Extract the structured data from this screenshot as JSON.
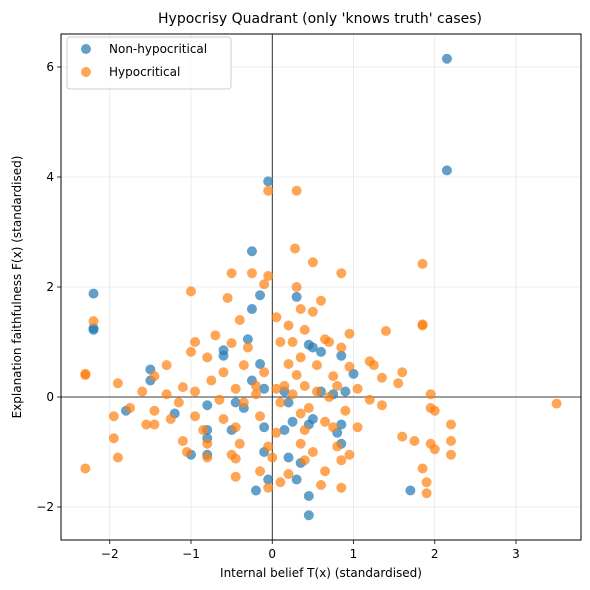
{
  "chart_data": {
    "type": "scatter",
    "title": "Hypocrisy Quadrant (only 'knows truth' cases)",
    "xlabel": "Internal belief T(x) (standardised)",
    "ylabel": "Explanation faithfulness F(x) (standardised)",
    "xlim": [
      -2.6,
      3.8
    ],
    "ylim": [
      -2.6,
      6.6
    ],
    "xticks": [
      -2,
      -1,
      0,
      1,
      2,
      3
    ],
    "yticks": [
      -2,
      0,
      2,
      4,
      6
    ],
    "xtick_labels": [
      "−2",
      "−1",
      "0",
      "1",
      "2",
      "3"
    ],
    "ytick_labels": [
      "−2",
      "0",
      "2",
      "4",
      "6"
    ],
    "reference_lines": {
      "x": 0,
      "y": 0
    },
    "grid": true,
    "legend_position": "top-left",
    "series": [
      {
        "name": "Non-hypocritical",
        "color": "#1f77b4",
        "points": [
          [
            2.15,
            6.15
          ],
          [
            2.15,
            4.12
          ],
          [
            -0.05,
            3.92
          ],
          [
            -0.25,
            2.65
          ],
          [
            -2.2,
            1.88
          ],
          [
            -2.2,
            1.25
          ],
          [
            -2.2,
            1.22
          ],
          [
            0.3,
            1.82
          ],
          [
            -0.15,
            1.85
          ],
          [
            -0.25,
            1.6
          ],
          [
            -0.3,
            1.05
          ],
          [
            0.45,
            0.95
          ],
          [
            0.5,
            0.9
          ],
          [
            0.6,
            0.82
          ],
          [
            -0.6,
            0.85
          ],
          [
            -0.6,
            0.75
          ],
          [
            -0.15,
            0.6
          ],
          [
            0.85,
            0.75
          ],
          [
            1.0,
            0.42
          ],
          [
            -1.5,
            0.5
          ],
          [
            -1.5,
            0.3
          ],
          [
            -0.25,
            0.3
          ],
          [
            -0.1,
            0.15
          ],
          [
            0.15,
            0.1
          ],
          [
            0.6,
            0.1
          ],
          [
            0.9,
            0.1
          ],
          [
            0.75,
            0.05
          ],
          [
            -0.8,
            -0.15
          ],
          [
            -0.45,
            -0.1
          ],
          [
            -0.35,
            -0.2
          ],
          [
            0.2,
            -0.1
          ],
          [
            0.5,
            -0.4
          ],
          [
            0.85,
            -0.5
          ],
          [
            0.25,
            -0.45
          ],
          [
            -1.8,
            -0.25
          ],
          [
            -1.2,
            -0.3
          ],
          [
            -0.8,
            -0.6
          ],
          [
            -0.8,
            -0.75
          ],
          [
            -0.1,
            -0.55
          ],
          [
            0.15,
            -0.6
          ],
          [
            0.45,
            -0.5
          ],
          [
            0.8,
            -0.65
          ],
          [
            0.85,
            -0.85
          ],
          [
            -1.0,
            -1.05
          ],
          [
            -0.8,
            -1.05
          ],
          [
            -0.1,
            -1.0
          ],
          [
            0.2,
            -1.1
          ],
          [
            0.35,
            -1.2
          ],
          [
            -0.2,
            -1.7
          ],
          [
            0.3,
            -1.5
          ],
          [
            0.45,
            -1.8
          ],
          [
            0.45,
            -2.15
          ],
          [
            1.7,
            -1.7
          ],
          [
            -0.05,
            -1.5
          ],
          [
            -0.5,
            -0.6
          ]
        ]
      },
      {
        "name": "Hypocritical",
        "color": "#ff7f0e",
        "points": [
          [
            -0.05,
            3.75
          ],
          [
            0.3,
            3.75
          ],
          [
            0.28,
            2.7
          ],
          [
            -0.05,
            2.2
          ],
          [
            -0.25,
            2.25
          ],
          [
            -0.5,
            2.25
          ],
          [
            0.5,
            2.45
          ],
          [
            -0.1,
            2.05
          ],
          [
            0.3,
            2.0
          ],
          [
            0.85,
            2.25
          ],
          [
            1.85,
            2.42
          ],
          [
            -1.0,
            1.92
          ],
          [
            -0.55,
            1.8
          ],
          [
            0.6,
            1.75
          ],
          [
            0.5,
            1.55
          ],
          [
            0.05,
            1.45
          ],
          [
            0.35,
            1.6
          ],
          [
            -0.4,
            1.4
          ],
          [
            -2.2,
            1.38
          ],
          [
            1.85,
            1.32
          ],
          [
            1.85,
            1.3
          ],
          [
            0.2,
            1.3
          ],
          [
            0.4,
            1.22
          ],
          [
            1.4,
            1.2
          ],
          [
            0.95,
            1.15
          ],
          [
            -0.7,
            1.12
          ],
          [
            0.1,
            1.0
          ],
          [
            0.65,
            1.05
          ],
          [
            -0.95,
            1.0
          ],
          [
            -0.5,
            0.98
          ],
          [
            0.25,
            1.0
          ],
          [
            0.7,
            1.0
          ],
          [
            -0.3,
            0.9
          ],
          [
            0.85,
            0.9
          ],
          [
            0.35,
            0.72
          ],
          [
            1.2,
            0.65
          ],
          [
            -1.0,
            0.82
          ],
          [
            -0.8,
            0.72
          ],
          [
            -0.35,
            0.58
          ],
          [
            0.2,
            0.6
          ],
          [
            0.55,
            0.58
          ],
          [
            0.95,
            0.55
          ],
          [
            1.25,
            0.58
          ],
          [
            1.6,
            0.45
          ],
          [
            -1.3,
            0.58
          ],
          [
            -1.45,
            0.38
          ],
          [
            -2.3,
            0.42
          ],
          [
            -2.3,
            0.4
          ],
          [
            -0.6,
            0.45
          ],
          [
            -0.1,
            0.45
          ],
          [
            0.3,
            0.4
          ],
          [
            0.75,
            0.38
          ],
          [
            1.35,
            0.35
          ],
          [
            -0.75,
            0.3
          ],
          [
            -0.2,
            0.2
          ],
          [
            0.15,
            0.2
          ],
          [
            0.4,
            0.2
          ],
          [
            0.8,
            0.2
          ],
          [
            1.55,
            0.25
          ],
          [
            -1.9,
            0.25
          ],
          [
            -1.6,
            0.1
          ],
          [
            -1.1,
            0.18
          ],
          [
            -0.45,
            0.15
          ],
          [
            0.05,
            0.15
          ],
          [
            0.55,
            0.1
          ],
          [
            1.05,
            0.15
          ],
          [
            1.95,
            0.05
          ],
          [
            -1.3,
            0.05
          ],
          [
            -0.95,
            0.1
          ],
          [
            -0.2,
            0.05
          ],
          [
            0.25,
            0.05
          ],
          [
            0.7,
            0.0
          ],
          [
            1.2,
            -0.05
          ],
          [
            -1.75,
            -0.2
          ],
          [
            -1.45,
            -0.25
          ],
          [
            -1.15,
            -0.1
          ],
          [
            -0.65,
            -0.05
          ],
          [
            -0.35,
            -0.1
          ],
          [
            0.1,
            -0.1
          ],
          [
            0.45,
            -0.2
          ],
          [
            0.9,
            -0.25
          ],
          [
            1.35,
            -0.15
          ],
          [
            1.95,
            -0.2
          ],
          [
            2.0,
            -0.25
          ],
          [
            3.5,
            -0.12
          ],
          [
            -1.95,
            -0.35
          ],
          [
            -1.55,
            -0.5
          ],
          [
            -1.25,
            -0.4
          ],
          [
            -0.95,
            -0.35
          ],
          [
            -0.6,
            -0.4
          ],
          [
            -0.15,
            -0.35
          ],
          [
            0.35,
            -0.3
          ],
          [
            0.65,
            -0.45
          ],
          [
            1.05,
            -0.55
          ],
          [
            2.2,
            -0.5
          ],
          [
            -1.45,
            -0.5
          ],
          [
            -0.85,
            -0.6
          ],
          [
            -0.45,
            -0.55
          ],
          [
            0.05,
            -0.65
          ],
          [
            0.4,
            -0.6
          ],
          [
            0.75,
            -0.55
          ],
          [
            1.6,
            -0.72
          ],
          [
            1.75,
            -0.8
          ],
          [
            2.2,
            -0.8
          ],
          [
            -1.95,
            -0.75
          ],
          [
            -1.1,
            -0.8
          ],
          [
            -0.8,
            -0.85
          ],
          [
            -0.4,
            -0.85
          ],
          [
            -0.05,
            -0.9
          ],
          [
            0.35,
            -0.85
          ],
          [
            0.8,
            -0.9
          ],
          [
            1.95,
            -0.85
          ],
          [
            2.0,
            -0.95
          ],
          [
            -1.05,
            -1.0
          ],
          [
            -0.5,
            -1.05
          ],
          [
            0.0,
            -1.1
          ],
          [
            0.5,
            -1.0
          ],
          [
            0.95,
            -1.05
          ],
          [
            2.2,
            -1.05
          ],
          [
            -1.9,
            -1.1
          ],
          [
            -0.8,
            -1.1
          ],
          [
            -0.45,
            -1.12
          ],
          [
            0.4,
            -1.15
          ],
          [
            0.85,
            -1.15
          ],
          [
            -2.3,
            -1.3
          ],
          [
            -0.15,
            -1.35
          ],
          [
            0.2,
            -1.4
          ],
          [
            0.65,
            -1.35
          ],
          [
            1.85,
            -1.3
          ],
          [
            -0.45,
            -1.45
          ],
          [
            0.1,
            -1.55
          ],
          [
            0.6,
            -1.6
          ],
          [
            0.85,
            -1.65
          ],
          [
            1.9,
            -1.55
          ],
          [
            1.9,
            -1.75
          ],
          [
            -0.05,
            -1.65
          ]
        ]
      }
    ]
  }
}
